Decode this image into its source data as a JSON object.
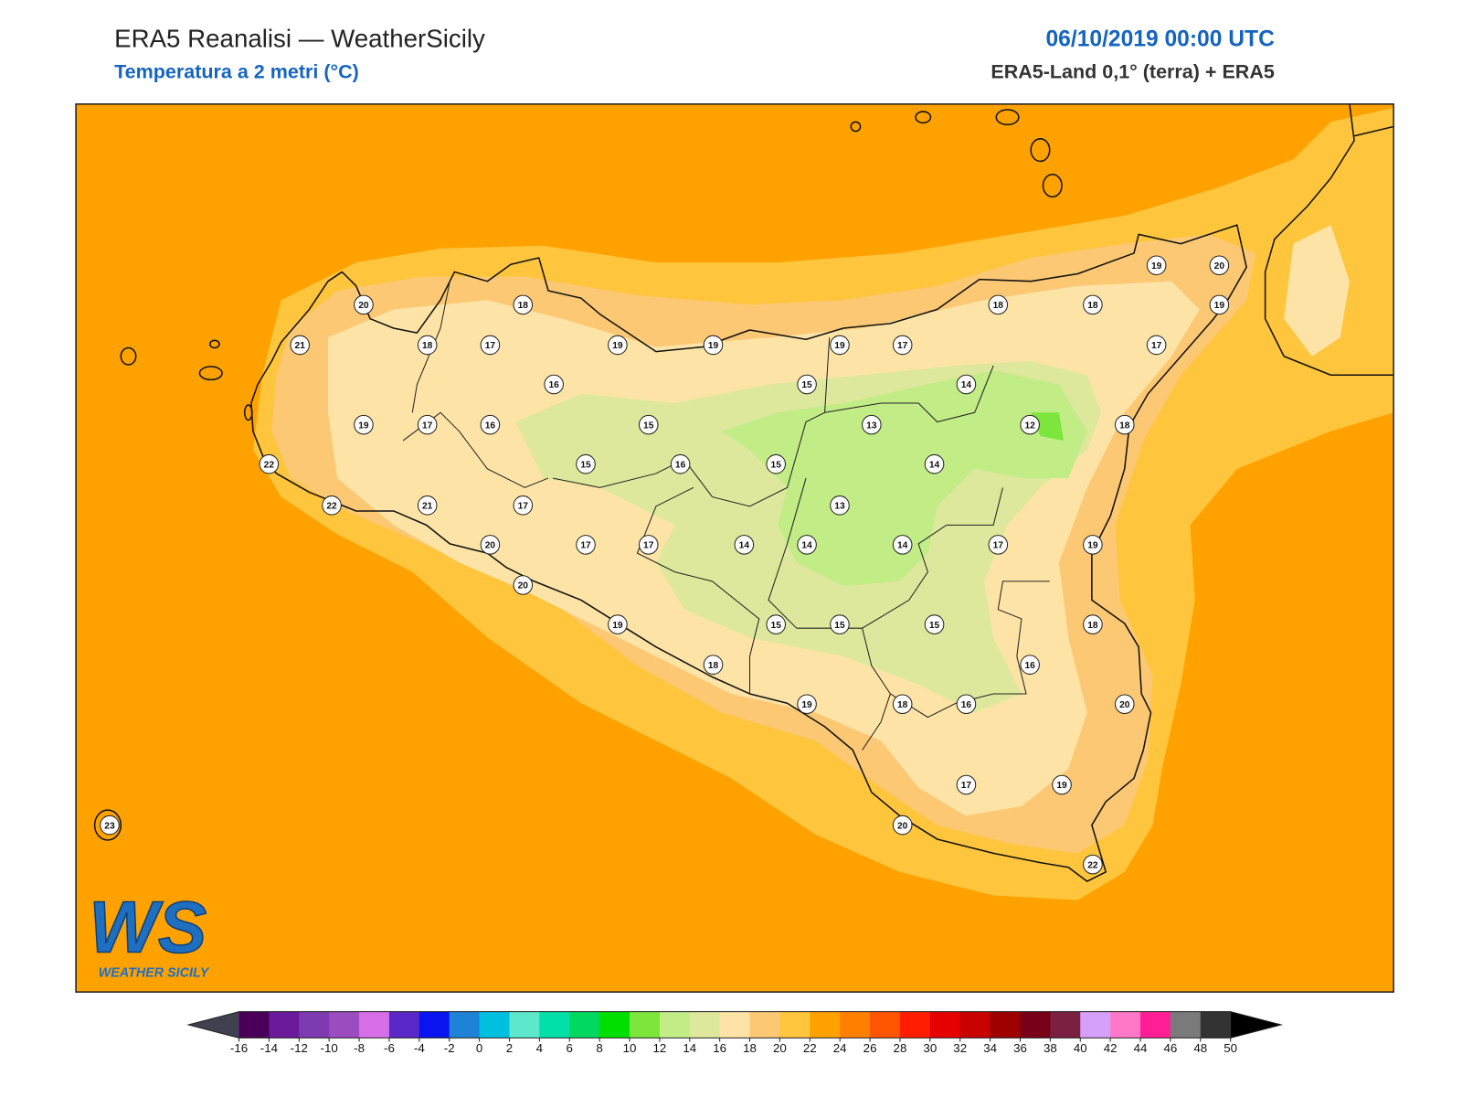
{
  "header": {
    "title": "ERA5 Reanalisi — WeatherSicily",
    "subtitle": "Temperatura a 2 metri (°C)",
    "datetime": "06/10/2019 00:00 UTC",
    "source": "ERA5-Land 0,1° (terra) + ERA5"
  },
  "stations": [
    20,
    18,
    21,
    18,
    17,
    19,
    19,
    19,
    17,
    18,
    18,
    19,
    20,
    19,
    17,
    16,
    15,
    14,
    19,
    17,
    16,
    15,
    13,
    12,
    18,
    22,
    15,
    16,
    15,
    14,
    22,
    21,
    17,
    13,
    20,
    17,
    17,
    14,
    14,
    14,
    17,
    19,
    20,
    19,
    15,
    15,
    15,
    18,
    16,
    18,
    19,
    18,
    16,
    20,
    17,
    19,
    20,
    22,
    23
  ],
  "colorbar": {
    "ticks": [
      -16,
      -14,
      -12,
      -10,
      -8,
      -6,
      -4,
      -2,
      0,
      2,
      4,
      6,
      8,
      10,
      12,
      14,
      16,
      18,
      20,
      22,
      24,
      26,
      28,
      30,
      32,
      34,
      36,
      38,
      40,
      42,
      44,
      46,
      48,
      50
    ],
    "colors": [
      "#4a0058",
      "#6a1a9a",
      "#7e3ab0",
      "#9b4cbf",
      "#d66ee8",
      "#5a27c8",
      "#0a14f0",
      "#1e82d6",
      "#00c0e0",
      "#5de8cc",
      "#00e0a8",
      "#00d860",
      "#00e000",
      "#7ce63c",
      "#c2ec86",
      "#dde89c",
      "#fde4a6",
      "#fcc874",
      "#ffc53d",
      "#ffa200",
      "#ff8000",
      "#ff5500",
      "#ff1e00",
      "#e60000",
      "#c80000",
      "#9e0000",
      "#780018",
      "#7a2040",
      "#d5a0fa",
      "#ff78c8",
      "#ff1e96",
      "#7a7a7a",
      "#333333"
    ],
    "under_color": "#404050",
    "over_color": "#000000"
  },
  "logo": {
    "mark": "WS",
    "text": "WEATHER SICILY"
  }
}
